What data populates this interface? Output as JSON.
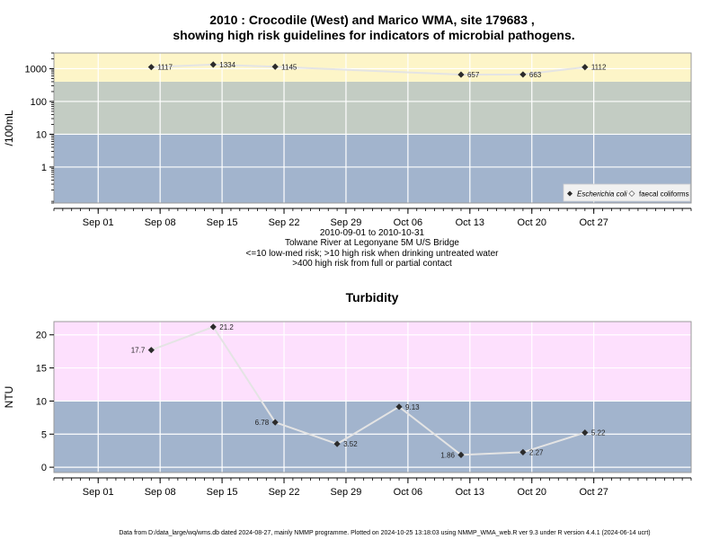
{
  "chart_data": [
    {
      "type": "line",
      "title": "2010 : Crocodile (West) and Marico WMA, site 179683 ,",
      "title2": "showing high risk guidelines for indicators of microbial pathogens.",
      "ylabel": "/100mL",
      "yscale": "log",
      "ylim": [
        0.08,
        3000
      ],
      "yticks": [
        1,
        10,
        100,
        1000
      ],
      "ytick_labels": [
        "1",
        "10",
        "100",
        "1000"
      ],
      "xlim": [
        "2010-08-27",
        "2010-11-07"
      ],
      "xticks": [
        "2010-09-01",
        "2010-09-08",
        "2010-09-15",
        "2010-09-22",
        "2010-09-29",
        "2010-10-06",
        "2010-10-13",
        "2010-10-20",
        "2010-10-27"
      ],
      "xtick_labels": [
        "Sep 01",
        "Sep 08",
        "Sep 15",
        "Sep 22",
        "Sep 29",
        "Oct 06",
        "Oct 13",
        "Oct 20",
        "Oct 27"
      ],
      "bands": [
        {
          "from": 0.08,
          "to": 10,
          "color": "#a2b4cd"
        },
        {
          "from": 10,
          "to": 400,
          "color": "#c3ccc3"
        },
        {
          "from": 400,
          "to": 3000,
          "color": "#fdf5c8"
        }
      ],
      "grid": true,
      "legend_position": "bottom-right",
      "series": [
        {
          "name": "Escherichia coli",
          "marker": "filled-diamond",
          "x": [
            "2010-09-07",
            "2010-09-14",
            "2010-09-21",
            "2010-10-12",
            "2010-10-19",
            "2010-10-26"
          ],
          "y": [
            1117,
            1334,
            1145,
            657,
            663,
            1112
          ],
          "labels": [
            "1117",
            "1334",
            "1145",
            "657",
            "663",
            "1112"
          ]
        },
        {
          "name": "faecal coliforms",
          "marker": "open-diamond",
          "x": [],
          "y": [],
          "labels": []
        }
      ],
      "notes": [
        "2010-09-01 to 2010-10-31",
        "Tolwane River at Legonyane 5M U/S Bridge",
        "<=10 low-med risk; >10 high risk when drinking untreated water",
        ">400 high risk from full or partial contact"
      ]
    },
    {
      "type": "line",
      "title": "Turbidity",
      "ylabel": "NTU",
      "yscale": "linear",
      "ylim": [
        -0.8,
        22
      ],
      "yticks": [
        0,
        5,
        10,
        15,
        20
      ],
      "ytick_labels": [
        "0",
        "5",
        "10",
        "15",
        "20"
      ],
      "xlim": [
        "2010-08-27",
        "2010-11-07"
      ],
      "xticks": [
        "2010-09-01",
        "2010-09-08",
        "2010-09-15",
        "2010-09-22",
        "2010-09-29",
        "2010-10-06",
        "2010-10-13",
        "2010-10-20",
        "2010-10-27"
      ],
      "xtick_labels": [
        "Sep 01",
        "Sep 08",
        "Sep 15",
        "Sep 22",
        "Sep 29",
        "Oct 06",
        "Oct 13",
        "Oct 20",
        "Oct 27"
      ],
      "bands": [
        {
          "from": -0.8,
          "to": 10,
          "color": "#a2b4cd"
        },
        {
          "from": 10,
          "to": 22,
          "color": "#fde0fd"
        }
      ],
      "grid": true,
      "series": [
        {
          "marker": "filled-diamond",
          "x": [
            "2010-09-07",
            "2010-09-14",
            "2010-09-21",
            "2010-09-28",
            "2010-10-05",
            "2010-10-12",
            "2010-10-19",
            "2010-10-26"
          ],
          "y": [
            17.7,
            21.2,
            6.78,
            3.52,
            9.13,
            1.86,
            2.27,
            5.22
          ],
          "labels": [
            "17.7",
            "21.2",
            "6.78",
            "3.52",
            "9.13",
            "1.86",
            "2.27",
            "5.22"
          ],
          "label_side": [
            "left",
            "right",
            "left",
            "right",
            "right",
            "left",
            "right",
            "right"
          ]
        }
      ]
    }
  ],
  "footer": "Data from D:/data_large/wq/wms.db dated 2024-08-27, mainly NMMP programme. Plotted on 2024-10-25 13:18:03 using NMMP_WMA_web.R ver 9.3 under R version 4.4.1 (2024-06-14 ucrt)"
}
